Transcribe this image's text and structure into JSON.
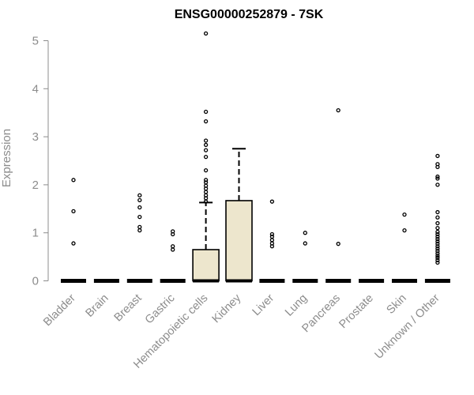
{
  "chart_data": {
    "type": "boxplot",
    "title": "ENSG00000252879 - 7SK",
    "xlabel": "",
    "ylabel": "Expression",
    "ylim": [
      0,
      5.2
    ],
    "yticks": [
      0,
      1,
      2,
      3,
      4,
      5
    ],
    "box_fill": "#ede6cd",
    "categories": [
      "Bladder",
      "Brain",
      "Breast",
      "Gastric",
      "Hematopoietic cells",
      "Kidney",
      "Liver",
      "Lung",
      "Pancreas",
      "Prostate",
      "Skin",
      "Unknown / Other"
    ],
    "boxes": [
      {
        "name": "Bladder",
        "min": 0,
        "q1": 0,
        "median": 0,
        "q3": 0,
        "max": 0,
        "outliers": [
          0.78,
          1.45,
          2.1
        ]
      },
      {
        "name": "Brain",
        "min": 0,
        "q1": 0,
        "median": 0,
        "q3": 0,
        "max": 0,
        "outliers": []
      },
      {
        "name": "Breast",
        "min": 0,
        "q1": 0,
        "median": 0,
        "q3": 0,
        "max": 0,
        "outliers": [
          1.05,
          1.12,
          1.33,
          1.53,
          1.68,
          1.78
        ]
      },
      {
        "name": "Gastric",
        "min": 0,
        "q1": 0,
        "median": 0,
        "q3": 0,
        "max": 0,
        "outliers": [
          0.65,
          0.72,
          0.97,
          1.03
        ]
      },
      {
        "name": "Hematopoietic cells",
        "min": 0,
        "q1": 0,
        "median": 0,
        "q3": 0.65,
        "max": 1.63,
        "outliers": [
          1.65,
          1.72,
          1.78,
          1.85,
          1.92,
          1.98,
          2.05,
          2.1,
          2.3,
          2.58,
          2.72,
          2.83,
          2.92,
          3.32,
          3.52,
          5.15
        ]
      },
      {
        "name": "Kidney",
        "min": 0,
        "q1": 0,
        "median": 0,
        "q3": 1.67,
        "max": 2.75,
        "outliers": []
      },
      {
        "name": "Liver",
        "min": 0,
        "q1": 0,
        "median": 0,
        "q3": 0,
        "max": 0,
        "outliers": [
          0.72,
          0.78,
          0.85,
          0.92,
          0.97,
          1.65
        ]
      },
      {
        "name": "Lung",
        "min": 0,
        "q1": 0,
        "median": 0,
        "q3": 0,
        "max": 0,
        "outliers": [
          0.78,
          1.0
        ]
      },
      {
        "name": "Pancreas",
        "min": 0,
        "q1": 0,
        "median": 0,
        "q3": 0,
        "max": 0,
        "outliers": [
          0.77,
          3.55
        ]
      },
      {
        "name": "Prostate",
        "min": 0,
        "q1": 0,
        "median": 0,
        "q3": 0,
        "max": 0,
        "outliers": []
      },
      {
        "name": "Skin",
        "min": 0,
        "q1": 0,
        "median": 0,
        "q3": 0,
        "max": 0,
        "outliers": [
          1.05,
          1.38
        ]
      },
      {
        "name": "Unknown / Other",
        "min": 0,
        "q1": 0,
        "median": 0,
        "q3": 0,
        "max": 0,
        "outliers": [
          0.38,
          0.43,
          0.48,
          0.52,
          0.57,
          0.62,
          0.67,
          0.72,
          0.77,
          0.82,
          0.87,
          0.92,
          0.97,
          1.02,
          1.1,
          1.2,
          1.32,
          1.43,
          2.0,
          2.13,
          2.17,
          2.37,
          2.43,
          2.6
        ]
      }
    ]
  }
}
